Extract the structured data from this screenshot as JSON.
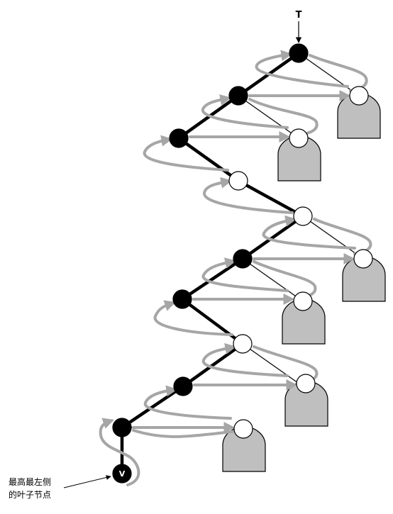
{
  "root_label": "T",
  "leaf_label": "V",
  "caption": {
    "line1": "最高最左侧",
    "line2": "的叶子节点"
  },
  "colors": {
    "internal_node": "#000000",
    "leaf_like_node": "#ffffff",
    "subtree": "#bfbfbf",
    "traversal_arrow": "#a6a6a6"
  }
}
